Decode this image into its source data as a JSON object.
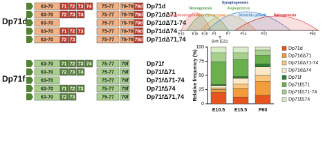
{
  "diagram": {
    "groups": [
      {
        "label": "Dp71d",
        "rows": [
          {
            "name": "Dp71d",
            "exons": [
              {
                "label": "63-70",
                "color": "#f4b183"
              },
              {
                "label": "71",
                "color": "#c0392b"
              },
              {
                "label": "72",
                "color": "#c0392b"
              },
              {
                "label": "73",
                "color": "#c0392b"
              },
              {
                "label": "74",
                "color": "#c0392b"
              },
              {
                "label": "75-77",
                "color": "#f4b183"
              },
              {
                "label": "78-79",
                "color": "#f4b183"
              },
              {
                "label": "79d",
                "color": "#c0392b"
              }
            ]
          },
          {
            "name": "Dp71dΔ71",
            "exons": [
              {
                "label": "63-70",
                "color": "#f4b183"
              },
              {
                "label": "72",
                "color": "#c0392b"
              },
              {
                "label": "73",
                "color": "#c0392b"
              },
              {
                "label": "74",
                "color": "#c0392b"
              },
              {
                "label": "75-77",
                "color": "#f4b183"
              },
              {
                "label": "78-79",
                "color": "#f4b183"
              },
              {
                "label": "79d",
                "color": "#c0392b"
              }
            ]
          },
          {
            "name": "Dp71dΔ71-74",
            "exons": [
              {
                "label": "63-70",
                "color": "#f4b183"
              },
              {
                "label": "75-77",
                "color": "#f4b183"
              },
              {
                "label": "78-79",
                "color": "#f4b183"
              },
              {
                "label": "79d",
                "color": "#c0392b"
              }
            ]
          },
          {
            "name": "Dp71dΔ74",
            "exons": [
              {
                "label": "63-70",
                "color": "#f4b183"
              },
              {
                "label": "71",
                "color": "#c0392b"
              },
              {
                "label": "72",
                "color": "#c0392b"
              },
              {
                "label": "73",
                "color": "#c0392b"
              },
              {
                "label": "75-77",
                "color": "#f4b183"
              },
              {
                "label": "78-79",
                "color": "#f4b183"
              },
              {
                "label": "79d",
                "color": "#c0392b"
              }
            ]
          },
          {
            "name": "Dp71dΔ71,74",
            "exons": [
              {
                "label": "63-70",
                "color": "#f4b183"
              },
              {
                "label": "72",
                "color": "#c0392b"
              },
              {
                "label": "73",
                "color": "#c0392b"
              },
              {
                "label": "75-77",
                "color": "#f4b183"
              },
              {
                "label": "78-79",
                "color": "#f4b183"
              },
              {
                "label": "79d",
                "color": "#c0392b"
              }
            ]
          }
        ]
      },
      {
        "label": "Dp71f",
        "rows": [
          {
            "name": "Dp71f",
            "exons": [
              {
                "label": "63-70",
                "color": "#a9d18e"
              },
              {
                "label": "71",
                "color": "#548235"
              },
              {
                "label": "72",
                "color": "#548235"
              },
              {
                "label": "73",
                "color": "#548235"
              },
              {
                "label": "74",
                "color": "#548235"
              },
              {
                "label": "75-77",
                "color": "#a9d18e"
              },
              {
                "label": "79f",
                "color": "#a9d18e"
              }
            ]
          },
          {
            "name": "Dp71fΔ71",
            "exons": [
              {
                "label": "63-70",
                "color": "#a9d18e"
              },
              {
                "label": "72",
                "color": "#548235"
              },
              {
                "label": "73",
                "color": "#548235"
              },
              {
                "label": "74",
                "color": "#548235"
              },
              {
                "label": "75-77",
                "color": "#a9d18e"
              },
              {
                "label": "79f",
                "color": "#a9d18e"
              }
            ]
          },
          {
            "name": "Dp71fΔ71-74",
            "exons": [
              {
                "label": "63-70",
                "color": "#a9d18e"
              },
              {
                "label": "75-77",
                "color": "#a9d18e"
              },
              {
                "label": "79f",
                "color": "#a9d18e"
              }
            ]
          },
          {
            "name": "Dp71fΔ74",
            "exons": [
              {
                "label": "63-70",
                "color": "#a9d18e"
              },
              {
                "label": "71",
                "color": "#548235"
              },
              {
                "label": "72",
                "color": "#548235"
              },
              {
                "label": "73",
                "color": "#548235"
              },
              {
                "label": "75-77",
                "color": "#a9d18e"
              },
              {
                "label": "79f",
                "color": "#a9d18e"
              }
            ]
          },
          {
            "name": "Dp71fΔ71,74",
            "exons": [
              {
                "label": "63-70",
                "color": "#a9d18e"
              },
              {
                "label": "72",
                "color": "#548235"
              },
              {
                "label": "73",
                "color": "#548235"
              },
              {
                "label": "75-77",
                "color": "#a9d18e"
              },
              {
                "label": "79f",
                "color": "#a9d18e"
              }
            ]
          }
        ]
      }
    ]
  },
  "timeline": {
    "processes": [
      {
        "label": "Synaptogenesis",
        "color": "#1f3b73"
      },
      {
        "label": "Neurogenesis",
        "color": "#3a9a3a"
      },
      {
        "label": "Angiogenesis",
        "color": "#6aa84f"
      },
      {
        "label": "Oligodendrogenesis",
        "color": "#e06666"
      },
      {
        "label": "Astrocytogenesis",
        "color": "#e69138"
      },
      {
        "label": "Dendritic growth",
        "color": "#3d85c6"
      },
      {
        "label": "Spinogenesis",
        "color": "#cc0000"
      }
    ],
    "ticks": [
      "E10",
      "E15",
      "E18",
      "P1",
      "P7",
      "P14",
      "P21",
      "P60"
    ],
    "birth": "Birth (E21)"
  },
  "chart_data": {
    "type": "stacked-bar",
    "ylabel": "Relative frequency (%)",
    "categories": [
      "E10.5",
      "E15.5",
      "P60"
    ],
    "ylim": [
      0,
      100
    ],
    "yticks": [
      0,
      25,
      50,
      75,
      100
    ],
    "series": [
      {
        "name": "Dp71d",
        "color": "#e8541e",
        "values": [
          20,
          12,
          15
        ]
      },
      {
        "name": "Dp71dΔ71",
        "color": "#f39c3c",
        "values": [
          5,
          15,
          25
        ]
      },
      {
        "name": "Dp71dΔ71-74",
        "color": "#f8c77d",
        "values": [
          3,
          8,
          10
        ]
      },
      {
        "name": "Dp71dΔ74",
        "color": "#fde9c8",
        "values": [
          4,
          10,
          15
        ]
      },
      {
        "name": "Dp71f",
        "color": "#2e7d32",
        "values": [
          2,
          3,
          5
        ]
      },
      {
        "name": "Dp71fΔ71",
        "color": "#6ab04c",
        "values": [
          40,
          30,
          15
        ]
      },
      {
        "name": "Dp71fΔ71-74",
        "color": "#a8d08d",
        "values": [
          16,
          12,
          10
        ]
      },
      {
        "name": "Dp71fΔ74",
        "color": "#d9ecc8",
        "values": [
          10,
          10,
          5
        ]
      }
    ]
  }
}
